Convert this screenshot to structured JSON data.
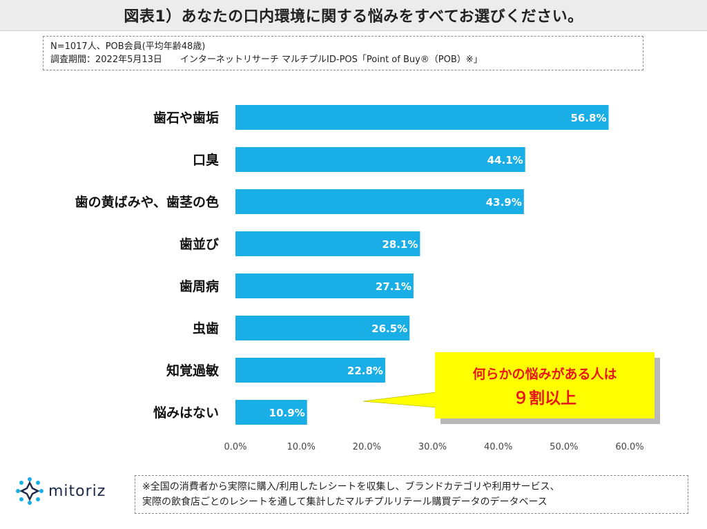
{
  "title": "図表1）あなたの口内環境に関する悩みをすべてお選びください。",
  "info": {
    "line1": "N=1017人、POB会員(平均年齢48歳)",
    "line2": "調査期間：2022年5月13日　　インターネットリサーチ マルチプルID-POS「Point of Buy®（POB）※」"
  },
  "chart_data": {
    "type": "bar",
    "orientation": "horizontal",
    "categories": [
      "歯石や歯垢",
      "口臭",
      "歯の黄ばみや、歯茎の色",
      "歯並び",
      "歯周病",
      "虫歯",
      "知覚過敏",
      "悩みはない"
    ],
    "values": [
      56.8,
      44.1,
      43.9,
      28.1,
      27.1,
      26.5,
      22.8,
      10.9
    ],
    "value_labels": [
      "56.8%",
      "44.1%",
      "43.9%",
      "28.1%",
      "27.1%",
      "26.5%",
      "22.8%",
      "10.9%"
    ],
    "xlim": [
      0,
      60
    ],
    "ticks": [
      0,
      10,
      20,
      30,
      40,
      50,
      60
    ],
    "tick_labels": [
      "0.0%",
      "10.0%",
      "20.0%",
      "30.0%",
      "40.0%",
      "50.0%",
      "60.0%"
    ],
    "bar_color": "#1aaee6",
    "grid": false,
    "annotation": {
      "line1": "何らかの悩みがある人は",
      "line2": "９割以上",
      "bg_color": "#ffff00",
      "text_color": "#e8161b"
    }
  },
  "logo": {
    "text": "mitoriz",
    "color": "#1c2a4a",
    "icon": "mitoriz-star-icon"
  },
  "note": {
    "line1": "※全国の消費者から実際に購入/利用したレシートを収集し、ブランドカテゴリや利用サービス、",
    "line2": "実際の飲食店ごとのレシートを通して集計したマルチプルリテール購買データのデータベース"
  }
}
